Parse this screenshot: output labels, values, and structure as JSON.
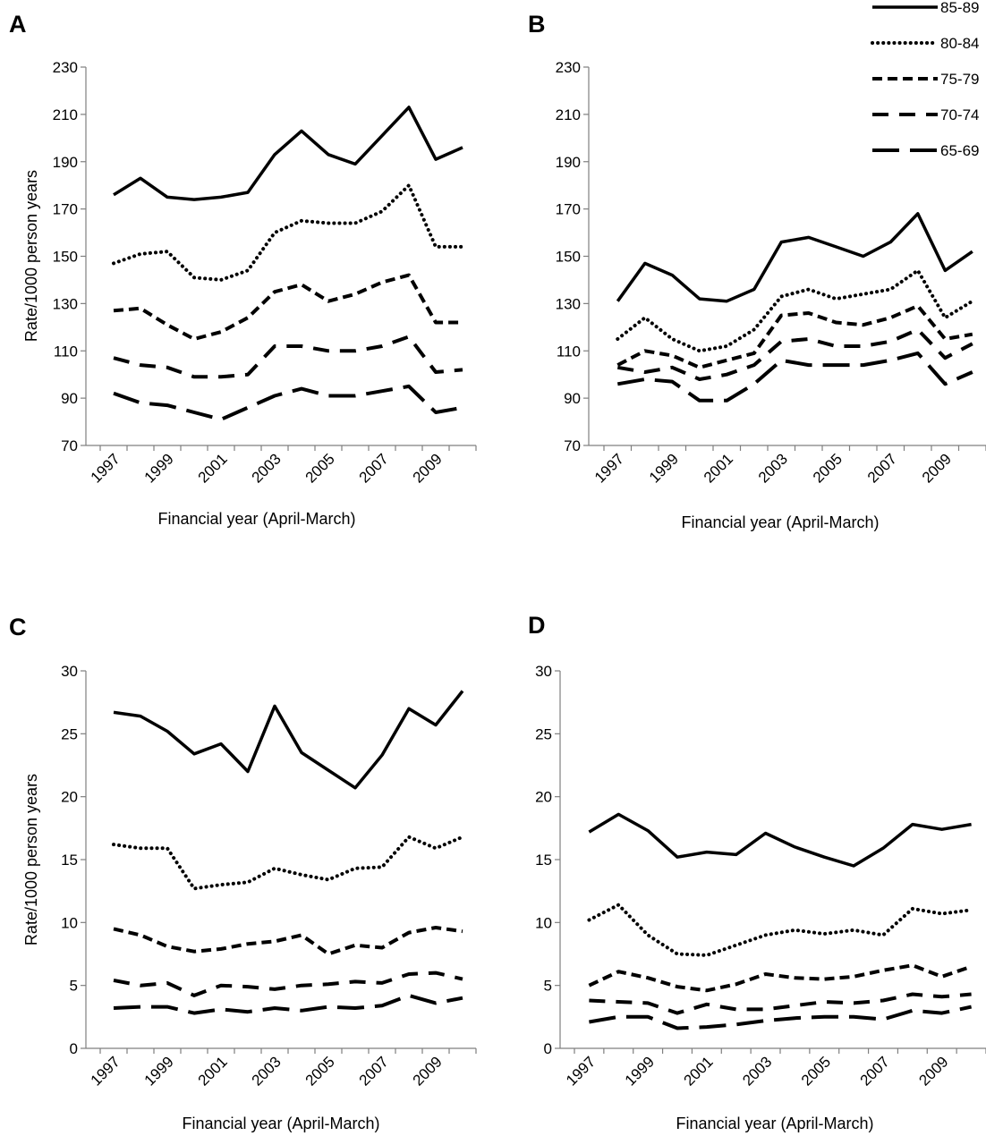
{
  "chart_data": [
    {
      "type": "line",
      "panel": "A",
      "xlabel": "Financial year (April-March)",
      "ylabel": "Rate/1000 person years",
      "ylim": [
        70,
        230
      ],
      "yticks": [
        70,
        90,
        110,
        130,
        150,
        170,
        190,
        210,
        230
      ],
      "x": [
        1997,
        1998,
        1999,
        2000,
        2001,
        2002,
        2003,
        2004,
        2005,
        2006,
        2007,
        2008,
        2009,
        2010
      ],
      "xtick_labels": [
        "1997",
        "1999",
        "2001",
        "2003",
        "2005",
        "2007",
        "2009"
      ],
      "series": [
        {
          "name": "85-89",
          "values": [
            176,
            183,
            175,
            174,
            175,
            177,
            193,
            203,
            193,
            189,
            201,
            213,
            191,
            196
          ]
        },
        {
          "name": "80-84",
          "values": [
            147,
            151,
            152,
            141,
            140,
            144,
            160,
            165,
            164,
            164,
            169,
            180,
            154,
            154
          ]
        },
        {
          "name": "75-79",
          "values": [
            127,
            128,
            121,
            115,
            118,
            124,
            135,
            138,
            131,
            134,
            139,
            142,
            122,
            122
          ]
        },
        {
          "name": "70-74",
          "values": [
            107,
            104,
            103,
            99,
            99,
            100,
            112,
            112,
            110,
            110,
            112,
            116,
            101,
            102
          ]
        },
        {
          "name": "65-69",
          "values": [
            92,
            88,
            87,
            84,
            81,
            86,
            91,
            94,
            91,
            91,
            93,
            95,
            84,
            86
          ]
        }
      ]
    },
    {
      "type": "line",
      "panel": "B",
      "xlabel": "Financial year (April-March)",
      "ylabel": "",
      "ylim": [
        70,
        230
      ],
      "yticks": [
        70,
        90,
        110,
        130,
        150,
        170,
        190,
        210,
        230
      ],
      "x": [
        1997,
        1998,
        1999,
        2000,
        2001,
        2002,
        2003,
        2004,
        2005,
        2006,
        2007,
        2008,
        2009,
        2010
      ],
      "xtick_labels": [
        "1997",
        "1999",
        "2001",
        "2003",
        "2005",
        "2007",
        "2009"
      ],
      "legend_position": "top-right",
      "series": [
        {
          "name": "85-89",
          "values": [
            131,
            147,
            142,
            132,
            131,
            136,
            156,
            158,
            154,
            150,
            156,
            168,
            144,
            152
          ]
        },
        {
          "name": "80-84",
          "values": [
            115,
            124,
            115,
            110,
            112,
            119,
            133,
            136,
            132,
            134,
            136,
            144,
            124,
            131
          ]
        },
        {
          "name": "75-79",
          "values": [
            104,
            110,
            108,
            103,
            106,
            109,
            125,
            126,
            122,
            121,
            124,
            129,
            115,
            117
          ]
        },
        {
          "name": "70-74",
          "values": [
            103,
            101,
            103,
            98,
            100,
            104,
            114,
            115,
            112,
            112,
            114,
            119,
            107,
            113
          ]
        },
        {
          "name": "65-69",
          "values": [
            96,
            98,
            97,
            89,
            89,
            96,
            106,
            104,
            104,
            104,
            106,
            109,
            96,
            101
          ]
        }
      ]
    },
    {
      "type": "line",
      "panel": "C",
      "xlabel": "Financial year (April-March)",
      "ylabel": "Rate/1000 person years",
      "ylim": [
        0,
        30
      ],
      "yticks": [
        0,
        5,
        10,
        15,
        20,
        25,
        30
      ],
      "x": [
        1997,
        1998,
        1999,
        2000,
        2001,
        2002,
        2003,
        2004,
        2005,
        2006,
        2007,
        2008,
        2009,
        2010
      ],
      "xtick_labels": [
        "1997",
        "1999",
        "2001",
        "2003",
        "2005",
        "2007",
        "2009"
      ],
      "series": [
        {
          "name": "85-89",
          "values": [
            26.7,
            26.4,
            25.2,
            23.4,
            24.2,
            22.0,
            27.2,
            23.5,
            22.1,
            20.7,
            23.3,
            27.0,
            25.7,
            28.4
          ]
        },
        {
          "name": "80-84",
          "values": [
            16.2,
            15.9,
            15.9,
            12.7,
            13.0,
            13.2,
            14.3,
            13.8,
            13.4,
            14.3,
            14.4,
            16.8,
            15.9,
            16.8
          ]
        },
        {
          "name": "75-79",
          "values": [
            9.5,
            9.0,
            8.1,
            7.7,
            7.9,
            8.3,
            8.5,
            9.0,
            7.5,
            8.2,
            8.0,
            9.2,
            9.6,
            9.3
          ]
        },
        {
          "name": "70-74",
          "values": [
            5.4,
            5.0,
            5.2,
            4.2,
            5.0,
            4.9,
            4.7,
            5.0,
            5.1,
            5.3,
            5.2,
            5.9,
            6.0,
            5.5
          ]
        },
        {
          "name": "65-69",
          "values": [
            3.2,
            3.3,
            3.3,
            2.8,
            3.1,
            2.9,
            3.2,
            3.0,
            3.3,
            3.2,
            3.4,
            4.2,
            3.6,
            4.0
          ]
        }
      ]
    },
    {
      "type": "line",
      "panel": "D",
      "xlabel": "Financial year (April-March)",
      "ylabel": "",
      "ylim": [
        0,
        30
      ],
      "yticks": [
        0,
        5,
        10,
        15,
        20,
        25,
        30
      ],
      "x": [
        1997,
        1998,
        1999,
        2000,
        2001,
        2002,
        2003,
        2004,
        2005,
        2006,
        2007,
        2008,
        2009,
        2010
      ],
      "xtick_labels": [
        "1997",
        "1999",
        "2001",
        "2003",
        "2005",
        "2007",
        "2009"
      ],
      "series": [
        {
          "name": "85-89",
          "values": [
            17.2,
            18.6,
            17.3,
            15.2,
            15.6,
            15.4,
            17.1,
            16.0,
            15.2,
            14.5,
            15.9,
            17.8,
            17.4,
            17.8
          ]
        },
        {
          "name": "80-84",
          "values": [
            10.2,
            11.4,
            9.0,
            7.5,
            7.4,
            8.2,
            9.0,
            9.4,
            9.1,
            9.4,
            9.0,
            11.1,
            10.7,
            11.0
          ]
        },
        {
          "name": "75-79",
          "values": [
            5.0,
            6.1,
            5.6,
            4.9,
            4.6,
            5.1,
            5.9,
            5.6,
            5.5,
            5.7,
            6.2,
            6.6,
            5.7,
            6.5
          ]
        },
        {
          "name": "70-74",
          "values": [
            3.8,
            3.7,
            3.6,
            2.8,
            3.5,
            3.1,
            3.1,
            3.4,
            3.7,
            3.6,
            3.8,
            4.3,
            4.1,
            4.3
          ]
        },
        {
          "name": "65-69",
          "values": [
            2.1,
            2.5,
            2.5,
            1.6,
            1.7,
            1.9,
            2.2,
            2.4,
            2.5,
            2.5,
            2.3,
            3.0,
            2.8,
            3.3
          ]
        }
      ]
    }
  ],
  "series_styles": {
    "85-89": {
      "dash": "",
      "width": 3.5,
      "cap": "butt"
    },
    "80-84": {
      "dash": "0.1 6",
      "width": 4,
      "cap": "round"
    },
    "75-79": {
      "dash": "11 6",
      "width": 4,
      "cap": "butt"
    },
    "70-74": {
      "dash": "18 12",
      "width": 4,
      "cap": "butt"
    },
    "65-69": {
      "dash": "30 12",
      "width": 4,
      "cap": "butt"
    }
  },
  "line_color": "#000000",
  "legend": {
    "entries": [
      "85-89",
      "80-84",
      "75-79",
      "70-74",
      "65-69"
    ]
  }
}
